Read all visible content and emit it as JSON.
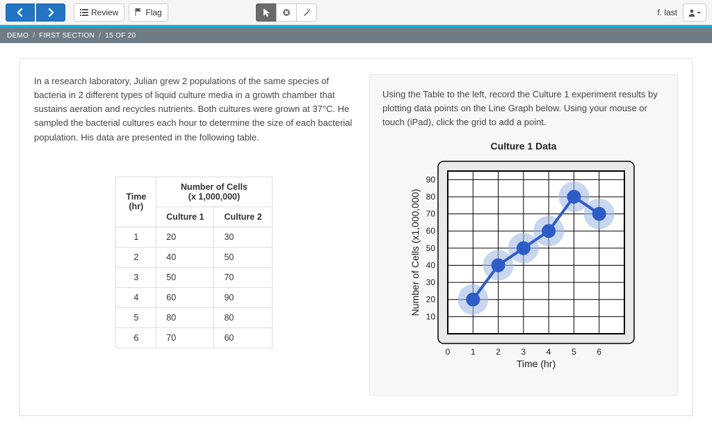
{
  "toolbar": {
    "review_label": "Review",
    "flag_label": "Flag"
  },
  "user": {
    "display_name": "f. last"
  },
  "breadcrumb": {
    "a": "Demo",
    "b": "First Section",
    "c": "15 of 20"
  },
  "passage": "In a research laboratory, Julian grew 2 populations of the same species of bacteria in 2 different types of liquid culture media in a growth chamber that sustains aeration and recycles nutrients. Both cultures were grown at 37°C. He sampled the bacterial cultures each hour to determine the size of each bacterial population. His data are presented in the following table.",
  "instructions": "Using the Table to the left, record the Culture 1 experiment results by plotting data points on the Line Graph below. Using your mouse or touch (iPad), click the grid to add a point.",
  "table": {
    "time_header": "Time\n(hr)",
    "cells_group_header": "Number of Cells\n(x 1,000,000)",
    "col1_header": "Culture 1",
    "col2_header": "Culture 2",
    "rows": [
      {
        "t": "1",
        "c1": "20",
        "c2": "30"
      },
      {
        "t": "2",
        "c1": "40",
        "c2": "50"
      },
      {
        "t": "3",
        "c1": "50",
        "c2": "70"
      },
      {
        "t": "4",
        "c1": "60",
        "c2": "90"
      },
      {
        "t": "5",
        "c1": "80",
        "c2": "80"
      },
      {
        "t": "6",
        "c1": "70",
        "c2": "60"
      }
    ]
  },
  "chart": {
    "title": "Culture 1 Data",
    "xlabel": "Time (hr)",
    "ylabel": "Number of Cells (x1,000,000)",
    "x_ticks": [
      0,
      1,
      2,
      3,
      4,
      5,
      6
    ],
    "x_extra_ticks": [
      7
    ],
    "y_ticks": [
      10,
      20,
      30,
      40,
      50,
      60,
      70,
      80,
      90
    ],
    "xlim": [
      0,
      7
    ],
    "ylim": [
      0,
      95
    ],
    "points": [
      {
        "x": 1,
        "y": 20
      },
      {
        "x": 2,
        "y": 40
      },
      {
        "x": 3,
        "y": 50
      },
      {
        "x": 4,
        "y": 60
      },
      {
        "x": 5,
        "y": 80
      },
      {
        "x": 6,
        "y": 70
      }
    ],
    "colors": {
      "outer_bg": "#e7e9ea",
      "plot_bg": "#ffffff",
      "grid": "#000000",
      "halo": "#9ab6e2",
      "point": "#2e5cc7",
      "line": "#2e5cc7"
    },
    "point_radius": 10,
    "halo_radius": 22,
    "line_width": 4
  }
}
